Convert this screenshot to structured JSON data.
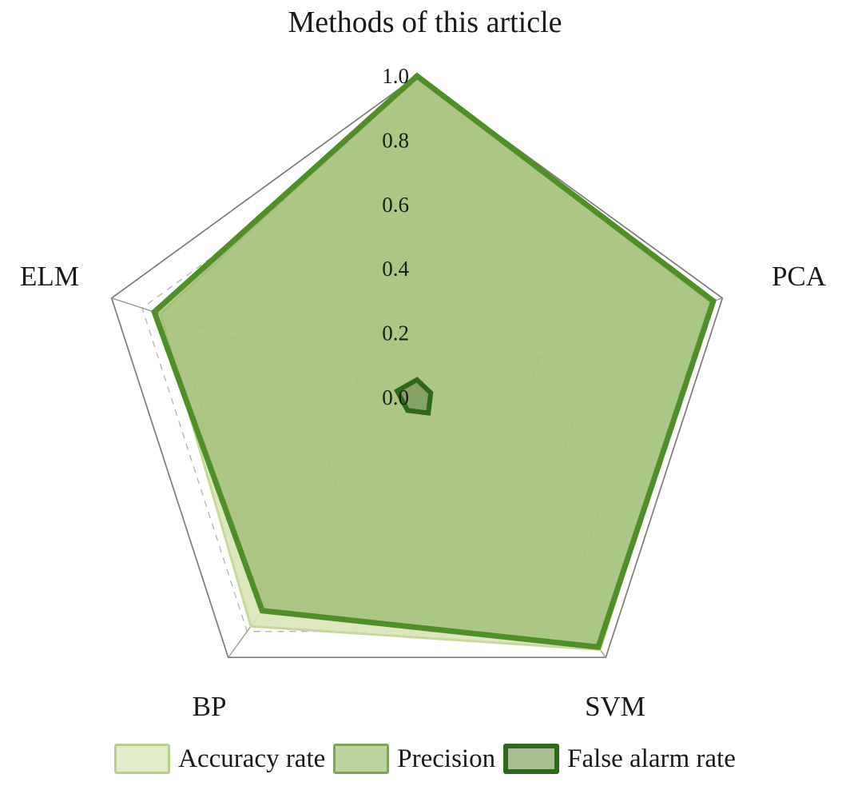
{
  "chart_data": {
    "type": "radar",
    "title": "Methods of this article",
    "categories": [
      "Methods of this article",
      "PCA",
      "SVM",
      "BP",
      "ELM"
    ],
    "rlim": [
      0,
      1
    ],
    "ticks": [
      {
        "label": "0.0",
        "value": 0.0
      },
      {
        "label": "0.2",
        "value": 0.2
      },
      {
        "label": "0.4",
        "value": 0.4
      },
      {
        "label": "0.6",
        "value": 0.6
      },
      {
        "label": "0.8",
        "value": 0.8
      },
      {
        "label": "1.0",
        "value": 1.0
      }
    ],
    "grid": {
      "solid_levels": [
        0.2,
        0.4,
        0.6,
        0.8
      ],
      "dashed_levels": [
        0.1,
        0.3,
        0.5,
        0.7,
        0.9
      ],
      "outer_level": 1.0,
      "solid_color": "#8f998f",
      "dashed_color": "#b3b3b3",
      "outer_color": "#7d7d7d"
    },
    "legend_position": "bottom",
    "series": [
      {
        "name": "Accuracy rate",
        "values": [
          1.0,
          0.96,
          0.97,
          0.88,
          0.84
        ],
        "fill": "rgba(217,230,183,0.9)",
        "stroke": "#c6d89e",
        "stroke_width": 3,
        "swatch_fill": "#e2ecca",
        "swatch_border": "#b9cf8e",
        "swatch_border_width": 3
      },
      {
        "name": "Precision",
        "values": [
          1.0,
          0.97,
          0.96,
          0.82,
          0.86
        ],
        "fill": "rgba(142,177,97,0.62)",
        "stroke": "#4e8f28",
        "stroke_width": 7,
        "swatch_fill": "#bdd4a0",
        "swatch_border": "#7fa558",
        "swatch_border_width": 3
      },
      {
        "name": "False alarm rate",
        "values": [
          0.055,
          0.045,
          0.06,
          0.05,
          0.065
        ],
        "fill": "rgba(130,158,98,0.9)",
        "stroke": "#2d681b",
        "stroke_width": 6,
        "swatch_fill": "#a9bf92",
        "swatch_border": "#2d681b",
        "swatch_border_width": 6
      }
    ]
  }
}
